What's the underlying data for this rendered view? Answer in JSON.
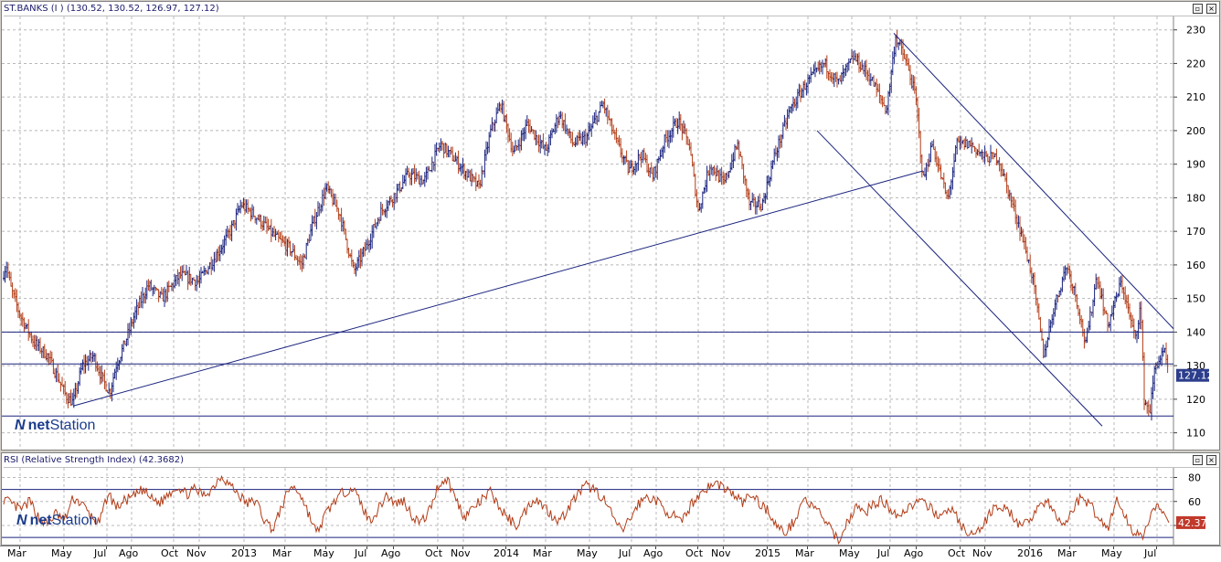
{
  "price_panel": {
    "title": "ST.BANKS (I ) (130.52, 130.52, 126.97, 127.12)",
    "last_value_label": "127.12",
    "brand_prefix": "net",
    "brand_suffix": "Station"
  },
  "rsi_panel": {
    "title": "RSI (Relative Strength Index) (42.3682)",
    "last_value_label": "42.37",
    "brand_prefix": "net",
    "brand_suffix": "Station"
  },
  "x_axis_labels": [
    "Mar",
    "May",
    "Jul",
    "Ago",
    "Oct",
    "Nov",
    "2013",
    "Mar",
    "May",
    "Jul",
    "Ago",
    "Oct",
    "Nov",
    "2014",
    "Mar",
    "May",
    "Jul",
    "Ago",
    "Oct",
    "Nov",
    "2015",
    "Mar",
    "May",
    "Jul",
    "Ago",
    "Oct",
    "Nov",
    "2016",
    "Mar",
    "May",
    "Jul"
  ],
  "colors": {
    "up_bar": "#1a237e",
    "down_bar": "#b23c17",
    "trendline": "#1a237e",
    "rsi_line": "#b23c17",
    "value_badge": "#2c3e8c",
    "rsi_badge": "#c0392b"
  },
  "chart_data": [
    {
      "type": "bar",
      "subtype": "ohlc",
      "title": "ST.BANKS (I ) (130.52, 130.52, 126.97, 127.12)",
      "last": {
        "open": 130.52,
        "high": 130.52,
        "low": 126.97,
        "close": 127.12
      },
      "ylim": [
        105,
        234
      ],
      "yticks": [
        110,
        120,
        130,
        140,
        150,
        160,
        170,
        180,
        190,
        200,
        210,
        220,
        230
      ],
      "grid": true,
      "x_months": [
        "Mar",
        "May",
        "Jul",
        "Ago",
        "Oct",
        "Nov",
        "2013",
        "Mar",
        "May",
        "Jul",
        "Ago",
        "Oct",
        "Nov",
        "2014",
        "Mar",
        "May",
        "Jul",
        "Ago",
        "Oct",
        "Nov",
        "2015",
        "Mar",
        "May",
        "Jul",
        "Ago",
        "Oct",
        "Nov",
        "2016",
        "Mar",
        "May",
        "Jul"
      ],
      "close_path": [
        {
          "t": 0,
          "v": 156
        },
        {
          "t": 5,
          "v": 160
        },
        {
          "t": 10,
          "v": 153
        },
        {
          "t": 20,
          "v": 145
        },
        {
          "t": 35,
          "v": 137
        },
        {
          "t": 50,
          "v": 133
        },
        {
          "t": 62,
          "v": 126
        },
        {
          "t": 70,
          "v": 121
        },
        {
          "t": 78,
          "v": 119
        },
        {
          "t": 88,
          "v": 130
        },
        {
          "t": 100,
          "v": 133
        },
        {
          "t": 110,
          "v": 126
        },
        {
          "t": 118,
          "v": 122
        },
        {
          "t": 125,
          "v": 130
        },
        {
          "t": 135,
          "v": 137
        },
        {
          "t": 145,
          "v": 145
        },
        {
          "t": 160,
          "v": 154
        },
        {
          "t": 175,
          "v": 150
        },
        {
          "t": 195,
          "v": 157
        },
        {
          "t": 215,
          "v": 155
        },
        {
          "t": 235,
          "v": 163
        },
        {
          "t": 250,
          "v": 170
        },
        {
          "t": 262,
          "v": 178
        },
        {
          "t": 280,
          "v": 174
        },
        {
          "t": 300,
          "v": 168
        },
        {
          "t": 315,
          "v": 165
        },
        {
          "t": 328,
          "v": 160
        },
        {
          "t": 340,
          "v": 172
        },
        {
          "t": 355,
          "v": 183
        },
        {
          "t": 370,
          "v": 175
        },
        {
          "t": 385,
          "v": 158
        },
        {
          "t": 398,
          "v": 165
        },
        {
          "t": 415,
          "v": 176
        },
        {
          "t": 430,
          "v": 181
        },
        {
          "t": 445,
          "v": 187
        },
        {
          "t": 462,
          "v": 185
        },
        {
          "t": 480,
          "v": 196
        },
        {
          "t": 500,
          "v": 190
        },
        {
          "t": 522,
          "v": 183
        },
        {
          "t": 535,
          "v": 200
        },
        {
          "t": 546,
          "v": 208
        },
        {
          "t": 560,
          "v": 193
        },
        {
          "t": 575,
          "v": 202
        },
        {
          "t": 595,
          "v": 194
        },
        {
          "t": 610,
          "v": 205
        },
        {
          "t": 625,
          "v": 196
        },
        {
          "t": 640,
          "v": 198
        },
        {
          "t": 658,
          "v": 208
        },
        {
          "t": 672,
          "v": 197
        },
        {
          "t": 686,
          "v": 188
        },
        {
          "t": 700,
          "v": 193
        },
        {
          "t": 712,
          "v": 186
        },
        {
          "t": 725,
          "v": 197
        },
        {
          "t": 740,
          "v": 203
        },
        {
          "t": 752,
          "v": 196
        },
        {
          "t": 762,
          "v": 176
        },
        {
          "t": 775,
          "v": 190
        },
        {
          "t": 790,
          "v": 184
        },
        {
          "t": 805,
          "v": 196
        },
        {
          "t": 818,
          "v": 178
        },
        {
          "t": 832,
          "v": 178
        },
        {
          "t": 845,
          "v": 192
        },
        {
          "t": 862,
          "v": 206
        },
        {
          "t": 880,
          "v": 214
        },
        {
          "t": 900,
          "v": 220
        },
        {
          "t": 915,
          "v": 214
        },
        {
          "t": 932,
          "v": 222
        },
        {
          "t": 950,
          "v": 216
        },
        {
          "t": 968,
          "v": 206
        },
        {
          "t": 978,
          "v": 228
        },
        {
          "t": 990,
          "v": 220
        },
        {
          "t": 1000,
          "v": 210
        },
        {
          "t": 1008,
          "v": 185
        },
        {
          "t": 1018,
          "v": 196
        },
        {
          "t": 1035,
          "v": 179
        },
        {
          "t": 1045,
          "v": 196
        },
        {
          "t": 1060,
          "v": 196
        },
        {
          "t": 1075,
          "v": 192
        },
        {
          "t": 1090,
          "v": 192
        },
        {
          "t": 1100,
          "v": 183
        },
        {
          "t": 1115,
          "v": 170
        },
        {
          "t": 1128,
          "v": 156
        },
        {
          "t": 1140,
          "v": 133
        },
        {
          "t": 1150,
          "v": 146
        },
        {
          "t": 1165,
          "v": 160
        },
        {
          "t": 1175,
          "v": 151
        },
        {
          "t": 1186,
          "v": 136
        },
        {
          "t": 1198,
          "v": 157
        },
        {
          "t": 1210,
          "v": 142
        },
        {
          "t": 1225,
          "v": 155
        },
        {
          "t": 1240,
          "v": 138
        },
        {
          "t": 1246,
          "v": 148
        },
        {
          "t": 1250,
          "v": 120
        },
        {
          "t": 1256,
          "v": 116
        },
        {
          "t": 1262,
          "v": 130
        },
        {
          "t": 1272,
          "v": 134
        },
        {
          "t": 1277,
          "v": 127.12
        }
      ],
      "horizontal_lines": [
        140,
        130.5,
        115
      ],
      "trendlines": [
        {
          "from": {
            "t": 78,
            "v": 118
          },
          "to": {
            "t": 1008,
            "v": 188
          }
        },
        {
          "from": {
            "t": 976,
            "v": 229
          },
          "to": {
            "t": 1282,
            "v": 141
          }
        },
        {
          "from": {
            "t": 892,
            "v": 200
          },
          "to": {
            "t": 1204,
            "v": 112
          }
        }
      ]
    },
    {
      "type": "line",
      "title": "RSI (Relative Strength Index) (42.3682)",
      "ylim": [
        24,
        88
      ],
      "yticks": [
        40,
        60,
        80
      ],
      "reference_lines": [
        70,
        30
      ],
      "last_value": 42.3682,
      "values_sample": [
        62,
        57,
        53,
        60,
        47,
        41,
        50,
        44,
        63,
        58,
        48,
        41,
        67,
        55,
        61,
        64,
        70,
        62,
        59,
        67,
        73,
        66,
        70,
        65,
        71,
        82,
        74,
        66,
        58,
        61,
        44,
        37,
        56,
        73,
        68,
        51,
        33,
        49,
        60,
        67,
        72,
        60,
        44,
        52,
        66,
        58,
        61,
        48,
        42,
        53,
        74,
        79,
        62,
        47,
        55,
        61,
        68,
        55,
        46,
        40,
        52,
        63,
        57,
        49,
        44,
        55,
        66,
        73,
        70,
        62,
        48,
        35,
        45,
        58,
        64,
        61,
        53,
        48,
        42,
        57,
        66,
        72,
        75,
        71,
        65,
        59,
        66,
        58,
        52,
        38,
        34,
        45,
        63,
        55,
        50,
        37,
        28,
        42,
        56,
        50,
        58,
        61,
        54,
        48,
        55,
        60,
        57,
        52,
        47,
        55,
        42,
        30,
        35,
        44,
        58,
        54,
        49,
        37,
        45,
        57,
        60,
        47,
        40,
        55,
        64,
        57,
        45,
        38,
        62,
        46,
        34,
        33,
        48,
        57,
        42.37
      ]
    }
  ]
}
